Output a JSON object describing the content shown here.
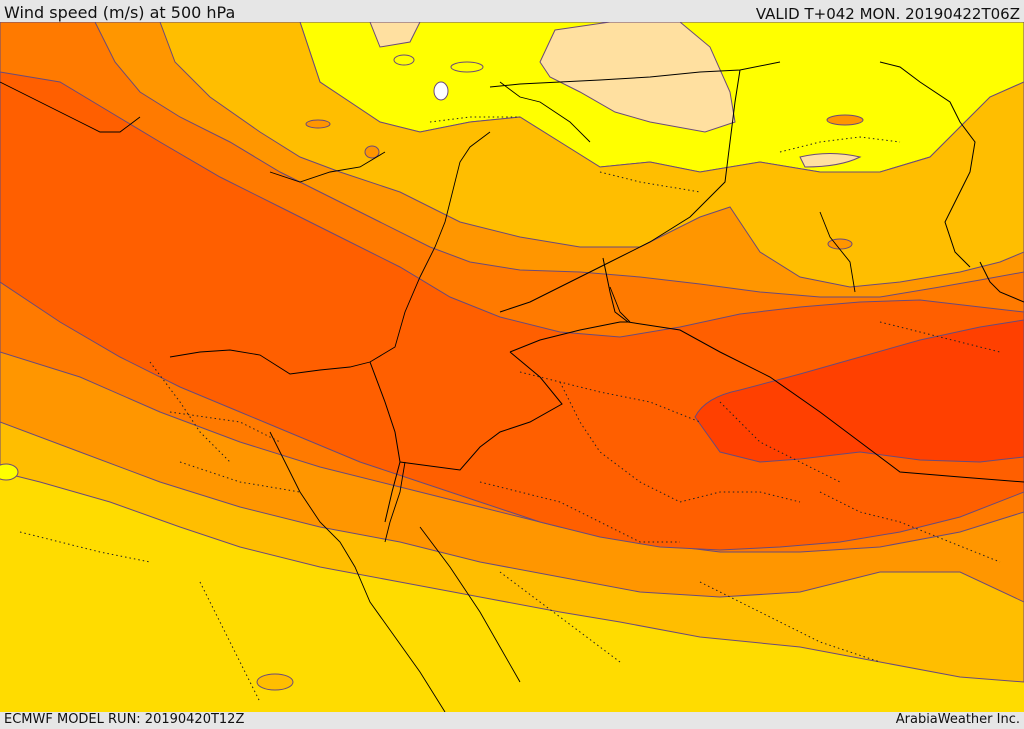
{
  "header": {
    "title": "Wind speed (m/s) at 500 hPa",
    "valid": "VALID T+042 MON. 20190422T06Z"
  },
  "footer": {
    "model_run": "ECMWF MODEL RUN: 20190420T12Z",
    "credit": "ArabiaWeather Inc."
  },
  "colors": {
    "pale_yellow": "#ffff00",
    "yellow": "#ffdc00",
    "light_orange": "#ffbe00",
    "orange": "#ff9600",
    "dark_orange": "#ff7a00",
    "red_orange": "#ff5f00",
    "red": "#ff4000",
    "peach": "#ffe0a0",
    "contour": "#6a4a7a",
    "border": "#000000"
  }
}
